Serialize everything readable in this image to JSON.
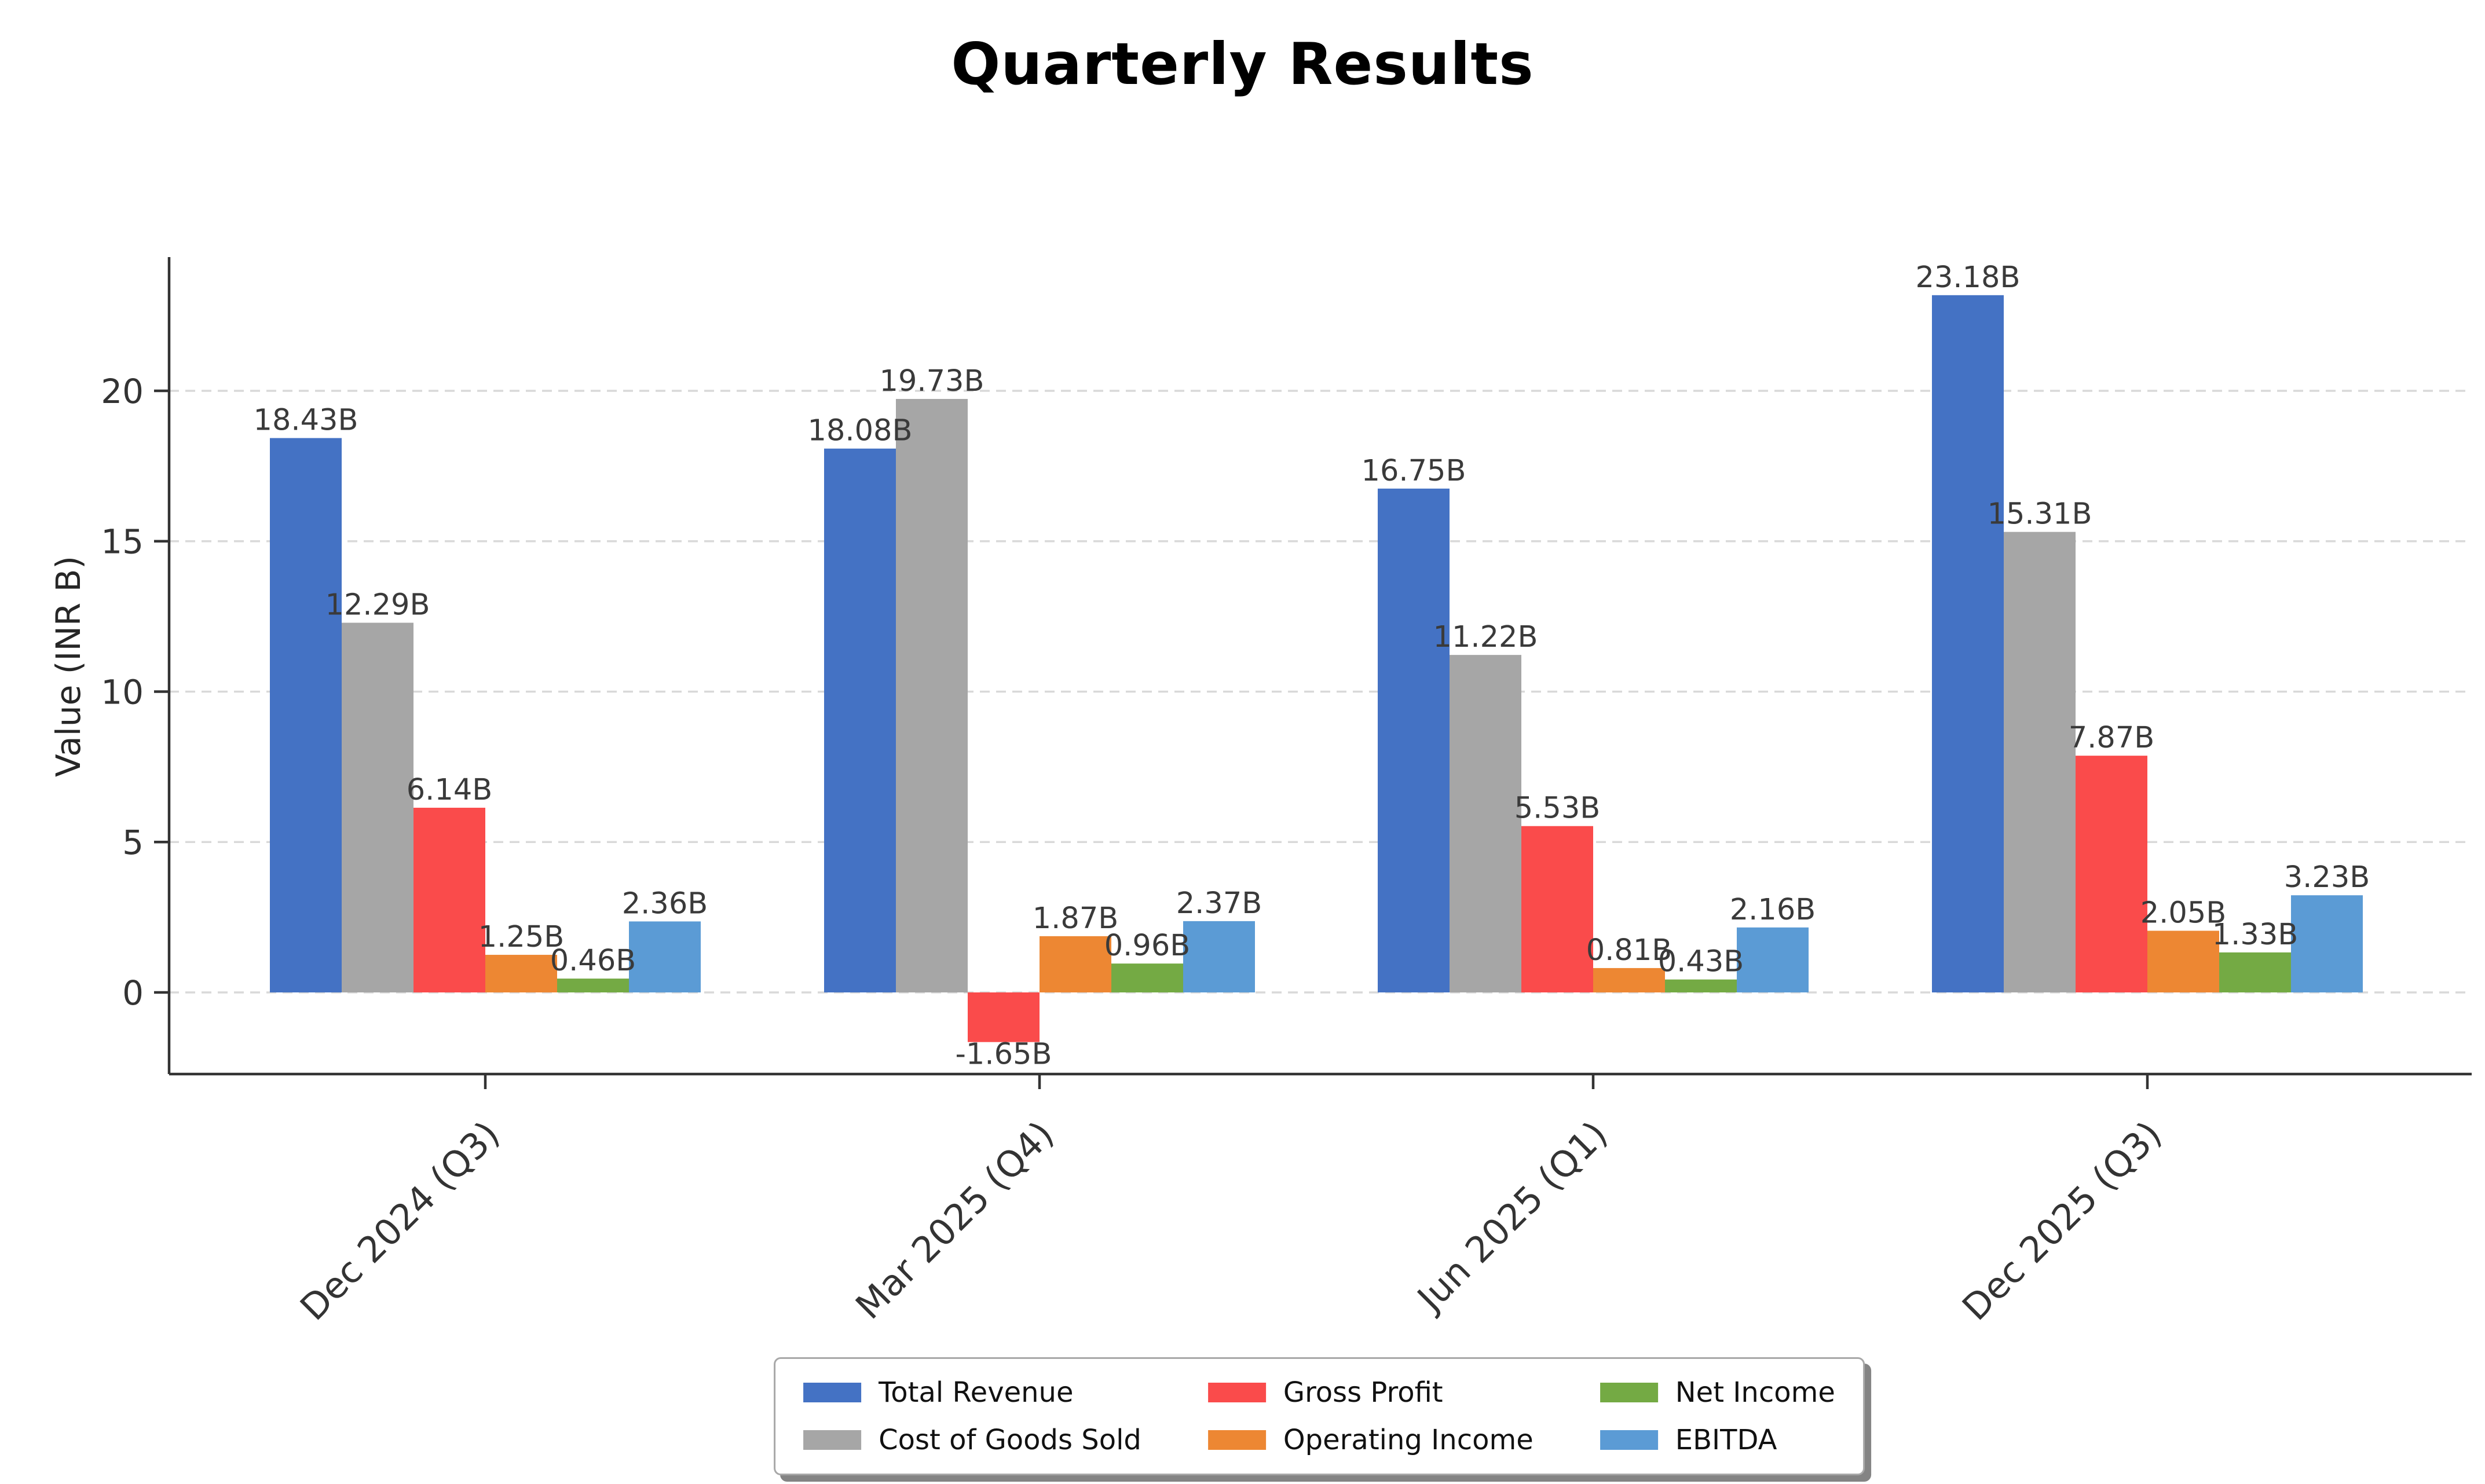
{
  "figure": {
    "title": "Quarterly Results"
  },
  "chart_data": {
    "type": "bar",
    "title": "Quarterly Results",
    "xlabel": "",
    "ylabel": "Value (INR B)",
    "categories": [
      "Dec 2024 (Q3)",
      "Mar 2025 (Q4)",
      "Jun 2025 (Q1)",
      "Dec 2025 (Q3)"
    ],
    "yticks": [
      0,
      5,
      10,
      15,
      20
    ],
    "ytick_labels": [
      "0",
      "5",
      "10",
      "15",
      "20"
    ],
    "ylim": [
      -2.75,
      24.4
    ],
    "grid": "horizontal-dashed",
    "gridline_color": "#d9d9d9",
    "axis_color": "#333333",
    "label_color": "#3a3a3a",
    "legend_position": "bottom-center",
    "value_suffix": "B",
    "series": [
      {
        "name": "Total Revenue",
        "color": "#4472C4",
        "values": [
          18.43,
          18.08,
          16.75,
          23.18
        ],
        "labels": [
          "18.43B",
          "18.08B",
          "16.75B",
          "23.18B"
        ]
      },
      {
        "name": "Cost of Goods Sold",
        "color": "#A6A6A6",
        "values": [
          12.29,
          19.73,
          11.22,
          15.31
        ],
        "labels": [
          "12.29B",
          "19.73B",
          "11.22B",
          "15.31B"
        ]
      },
      {
        "name": "Gross Profit",
        "color": "#FA4B4B",
        "values": [
          6.14,
          -1.65,
          5.53,
          7.87
        ],
        "labels": [
          "6.14B",
          "-1.65B",
          "5.53B",
          "7.87B"
        ]
      },
      {
        "name": "Operating Income",
        "color": "#ED8733",
        "values": [
          1.25,
          1.87,
          0.81,
          2.05
        ],
        "labels": [
          "1.25B",
          "1.87B",
          "0.81B",
          "2.05B"
        ]
      },
      {
        "name": "Net Income",
        "color": "#74AA44",
        "values": [
          0.46,
          0.96,
          0.43,
          1.33
        ],
        "labels": [
          "0.46B",
          "0.96B",
          "0.43B",
          "1.33B"
        ]
      },
      {
        "name": "EBITDA",
        "color": "#5B9BD5",
        "values": [
          2.36,
          2.37,
          2.16,
          3.23
        ],
        "labels": [
          "2.36B",
          "2.37B",
          "2.16B",
          "3.23B"
        ]
      }
    ]
  }
}
